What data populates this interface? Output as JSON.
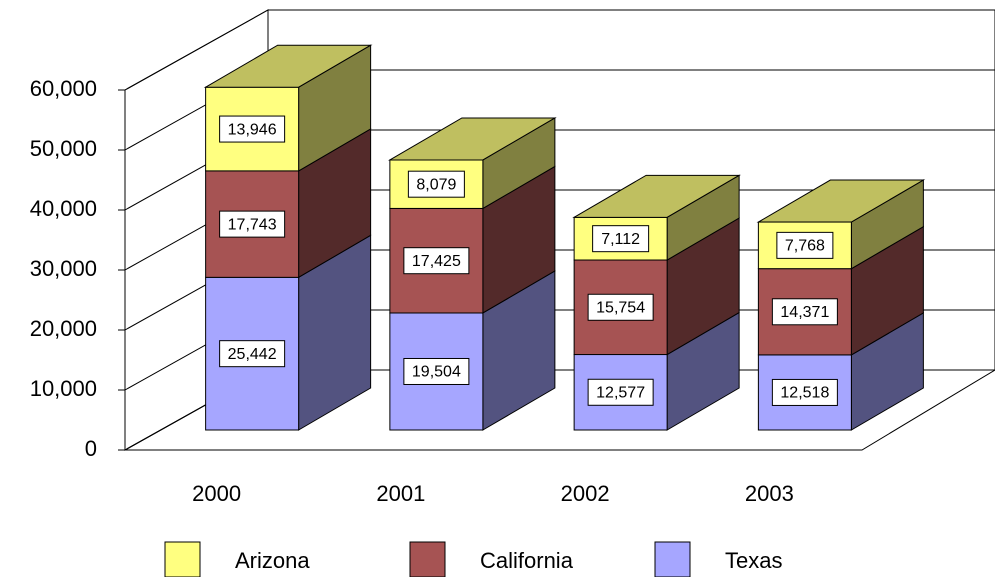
{
  "chart_data": {
    "type": "bar3d-stacked",
    "categories": [
      "2000",
      "2001",
      "2002",
      "2003"
    ],
    "series": [
      {
        "name": "Texas",
        "color": "#a6a6ff",
        "values": [
          25442,
          19504,
          12577,
          12518
        ],
        "value_labels": [
          "25,442",
          "19,504",
          "12,577",
          "12,518"
        ]
      },
      {
        "name": "California",
        "color": "#a65353",
        "values": [
          17743,
          17425,
          15754,
          14371
        ],
        "value_labels": [
          "17,743",
          "17,425",
          "15,754",
          "14,371"
        ]
      },
      {
        "name": "Arizona",
        "color": "#ffff80",
        "values": [
          13946,
          8079,
          7112,
          7768
        ],
        "value_labels": [
          "13,946",
          "8,079",
          "7,112",
          "7,768"
        ]
      }
    ],
    "ylim": [
      0,
      60000
    ],
    "yticks": [
      0,
      {
        "value": 10000,
        "label": "10,000"
      },
      {
        "value": 20000,
        "label": "20,000"
      },
      {
        "value": 30000,
        "label": "30,000"
      },
      {
        "value": 40000,
        "label": "40,000"
      },
      {
        "value": 50000,
        "label": "50,000"
      },
      {
        "value": 60000,
        "label": "60,000"
      }
    ],
    "grid": true
  }
}
